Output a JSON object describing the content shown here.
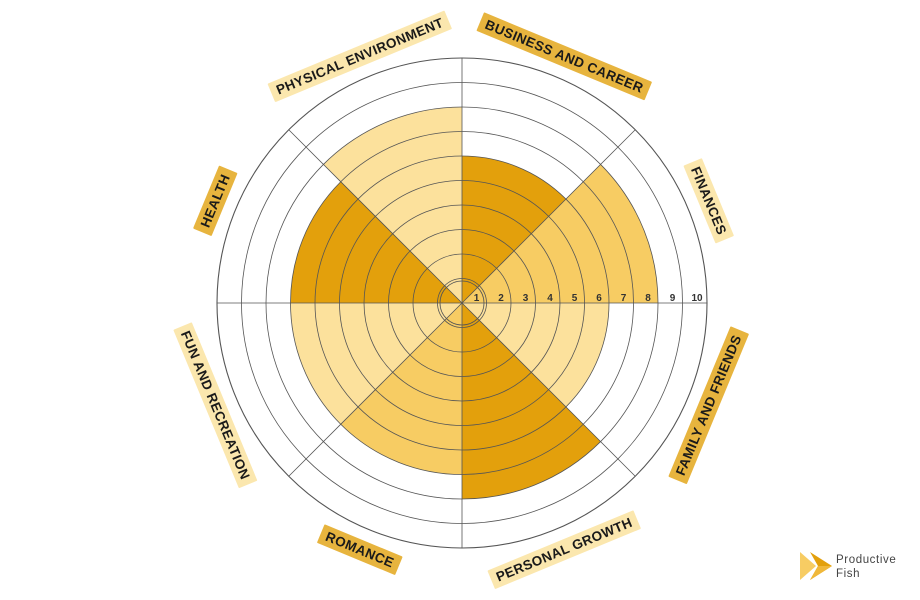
{
  "chart_data": {
    "type": "polar-area",
    "max": 10,
    "rings": 10,
    "tick_labels": [
      "1",
      "2",
      "3",
      "4",
      "5",
      "6",
      "7",
      "8",
      "9",
      "10"
    ],
    "categories": [
      "BUSINESS AND CAREER",
      "FINANCES",
      "FAMILY AND FRIENDS",
      "PERSONAL GROWTH",
      "ROMANCE",
      "FUN AND RECREATION",
      "HEALTH",
      "PHYSICAL ENVIRONMENT"
    ],
    "values": [
      6,
      8,
      6,
      8,
      7,
      7,
      7,
      8
    ],
    "title": "",
    "xlabel": "",
    "ylabel": ""
  },
  "colors": {
    "dark": "#E3A00C",
    "mid": "#F7CC63",
    "light": "#FCE19C",
    "label_dark": "#E7B43E",
    "label_light": "#FBE7AE",
    "grid": "#555555"
  },
  "brand": {
    "line1": "Productive",
    "line2": "Fish",
    "icon": "productive-fish-logo-icon"
  }
}
